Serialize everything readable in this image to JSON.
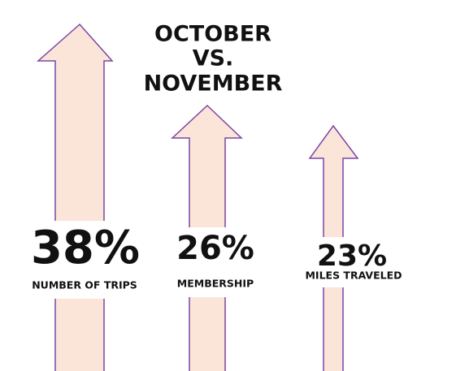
{
  "title": [
    "OCTOBER",
    "VS.",
    "NOVEMBER"
  ],
  "stats": [
    {
      "value": "38%",
      "label": "NUMBER OF TRIPS"
    },
    {
      "value": "26%",
      "label": "MEMBERSHIP"
    },
    {
      "value": "23%",
      "label": "MILES TRAVELED"
    }
  ]
}
